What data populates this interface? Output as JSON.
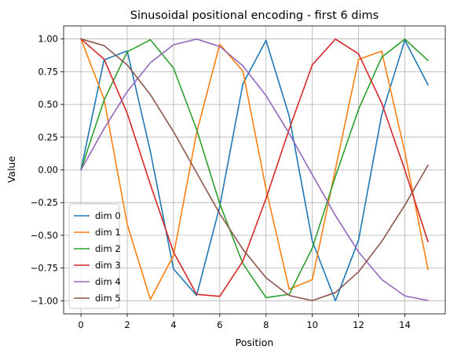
{
  "chart_data": {
    "type": "line",
    "title": "Sinusoidal positional encoding - first 6 dims",
    "xlabel": "Position",
    "ylabel": "Value",
    "x": [
      0,
      1,
      2,
      3,
      4,
      5,
      6,
      7,
      8,
      9,
      10,
      11,
      12,
      13,
      14,
      15
    ],
    "xlim": [
      -0.75,
      15.75
    ],
    "ylim": [
      -1.1,
      1.1
    ],
    "xticks": [
      0,
      2,
      4,
      6,
      8,
      10,
      12,
      14
    ],
    "xtick_labels": [
      "0",
      "2",
      "4",
      "6",
      "8",
      "10",
      "12",
      "14"
    ],
    "yticks": [
      1.0,
      0.75,
      0.5,
      0.25,
      0.0,
      -0.25,
      -0.5,
      -0.75,
      -1.0
    ],
    "ytick_labels": [
      "1.00",
      "0.75",
      "0.50",
      "0.25",
      "0.00",
      "−0.25",
      "−0.50",
      "−0.75",
      "−1.00"
    ],
    "grid": true,
    "legend_position": "bottom-left",
    "series": [
      {
        "name": "dim 0",
        "color": "#1f77b4",
        "values": [
          0.0,
          0.841,
          0.909,
          0.141,
          -0.757,
          -0.959,
          -0.279,
          0.657,
          0.989,
          0.412,
          -0.544,
          -1.0,
          -0.537,
          0.42,
          0.991,
          0.65
        ]
      },
      {
        "name": "dim 1",
        "color": "#ff7f0e",
        "values": [
          1.0,
          0.54,
          -0.416,
          -0.99,
          -0.654,
          0.284,
          0.96,
          0.754,
          -0.146,
          -0.911,
          -0.839,
          0.004,
          0.844,
          0.907,
          0.137,
          -0.76
        ]
      },
      {
        "name": "dim 2",
        "color": "#2ca02c",
        "values": [
          0.0,
          0.533,
          0.902,
          0.994,
          0.778,
          0.309,
          -0.259,
          -0.717,
          -0.976,
          -0.951,
          -0.598,
          -0.051,
          0.463,
          0.86,
          0.999,
          0.836
        ]
      },
      {
        "name": "dim 3",
        "color": "#d62728",
        "values": [
          1.0,
          0.846,
          0.432,
          -0.111,
          -0.628,
          -0.951,
          -0.966,
          -0.697,
          -0.219,
          0.31,
          0.802,
          0.999,
          0.886,
          0.511,
          -0.0,
          -0.548
        ]
      },
      {
        "name": "dim 4",
        "color": "#9467bd",
        "values": [
          0.0,
          0.315,
          0.598,
          0.818,
          0.956,
          0.999,
          0.943,
          0.795,
          0.567,
          0.279,
          -0.036,
          -0.349,
          -0.627,
          -0.837,
          -0.963,
          -0.998
        ]
      },
      {
        "name": "dim 5",
        "color": "#8c564b",
        "values": [
          1.0,
          0.949,
          0.802,
          0.575,
          0.292,
          -0.022,
          -0.335,
          -0.607,
          -0.824,
          -0.96,
          -0.999,
          -0.937,
          -0.779,
          -0.547,
          -0.27,
          0.035
        ]
      }
    ]
  }
}
